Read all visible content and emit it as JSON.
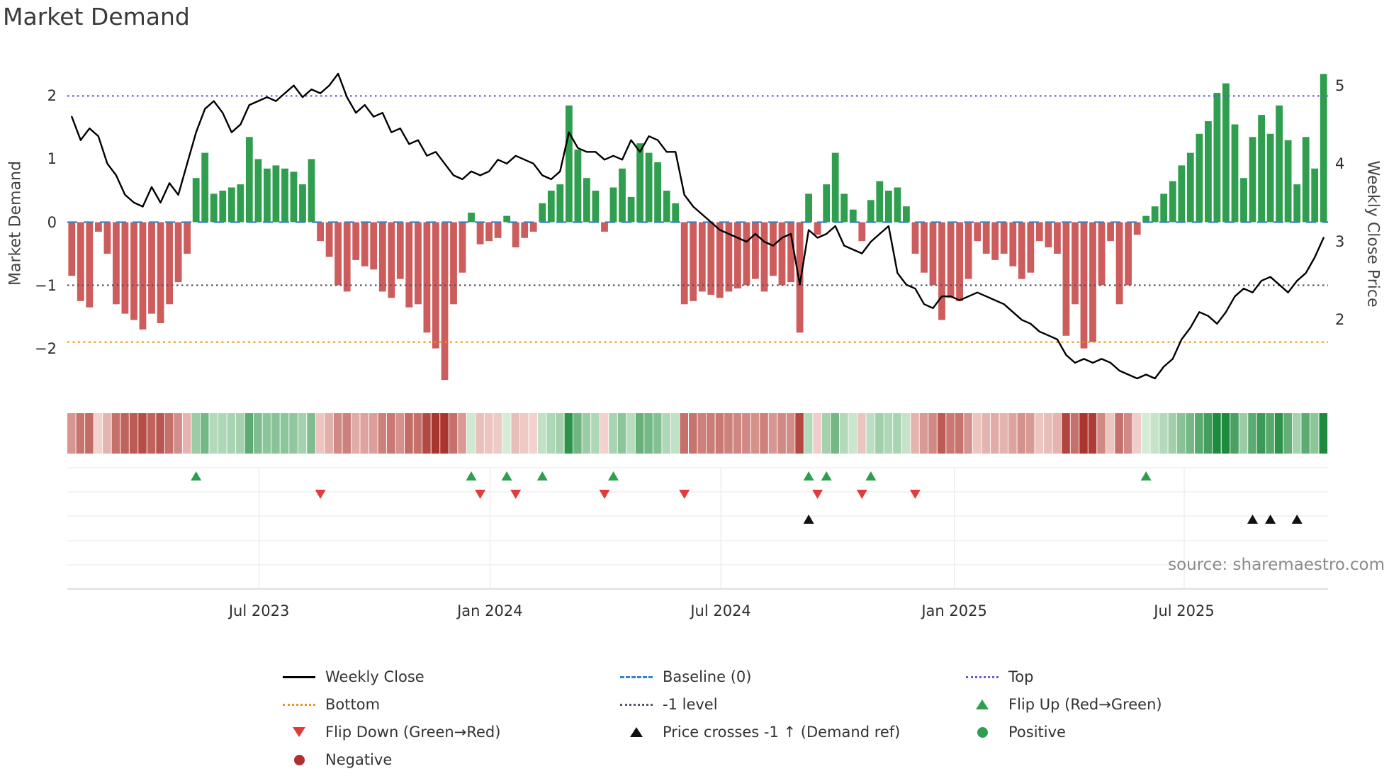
{
  "title": "Market Demand",
  "axes": {
    "left_label": "Market Demand",
    "right_label": "Weekly Close Price",
    "left_ticks": [
      "2",
      "1",
      "0",
      "−1",
      "−2"
    ],
    "right_ticks": [
      "5",
      "4",
      "3",
      "2"
    ],
    "x_ticks": [
      "Jul 2023",
      "Jan 2024",
      "Jul 2024",
      "Jan 2025",
      "Jul 2025"
    ]
  },
  "source_text": "source: sharemaestro.com",
  "colors": {
    "bar_positive": "#2f9e4f",
    "bar_negative": "#cd5c5c",
    "price_line": "#000000",
    "baseline": "#3b82c4",
    "top_line": "#6a5acd",
    "minus1_line": "#55556a",
    "bottom_line": "#f0941f",
    "flip_up": "#2f9e4f",
    "flip_down": "#e23b3b",
    "price_cross": "#111111",
    "positive_dot": "#2f9e4f",
    "negative_dot": "#b03030"
  },
  "legend": {
    "items": [
      {
        "label": "Weekly Close",
        "type": "line-solid-black"
      },
      {
        "label": "Bottom",
        "type": "line-dotted-orange"
      },
      {
        "label": "Flip Down (Green→Red)",
        "type": "triangle-down-red"
      },
      {
        "label": "Negative",
        "type": "circle-darkred"
      },
      {
        "label": "Baseline (0)",
        "type": "line-dashed-blue"
      },
      {
        "label": "-1 level",
        "type": "line-dotted-gray"
      },
      {
        "label": "Price crosses -1 ↑ (Demand ref)",
        "type": "triangle-up-black"
      },
      {
        "label": "Top",
        "type": "line-dotted-purple"
      },
      {
        "label": "Flip Up (Red→Green)",
        "type": "triangle-up-green"
      },
      {
        "label": "Positive",
        "type": "circle-green"
      }
    ]
  },
  "chart_data": {
    "type": "bar",
    "title": "Market Demand",
    "x_axis": {
      "unit": "weekly",
      "tick_labels": [
        "Jul 2023",
        "Jan 2024",
        "Jul 2024",
        "Jan 2025",
        "Jul 2025"
      ],
      "tick_weeks": [
        21.1,
        47.1,
        73.1,
        99.4,
        125.3
      ],
      "n_weeks": 142
    },
    "y_left": {
      "label": "Market Demand",
      "ticks": [
        2,
        1,
        0,
        -1,
        -2
      ],
      "lim": [
        -2.6,
        2.6
      ]
    },
    "y_right": {
      "label": "Weekly Close Price",
      "ticks": [
        5,
        4,
        3,
        2
      ],
      "lim": [
        1.15,
        5.35
      ]
    },
    "series": [
      {
        "name": "Market Demand",
        "type": "bar",
        "axis": "left",
        "values": [
          -0.85,
          -1.25,
          -1.35,
          -0.15,
          -0.5,
          -1.3,
          -1.45,
          -1.55,
          -1.7,
          -1.45,
          -1.6,
          -1.3,
          -0.95,
          -0.5,
          0.7,
          1.1,
          0.45,
          0.5,
          0.55,
          0.6,
          1.35,
          1.0,
          0.85,
          0.9,
          0.85,
          0.8,
          0.6,
          1.0,
          -0.3,
          -0.55,
          -1.0,
          -1.1,
          -0.6,
          -0.7,
          -0.75,
          -1.1,
          -1.2,
          -0.9,
          -1.35,
          -1.3,
          -1.75,
          -2.0,
          -2.5,
          -1.3,
          -0.8,
          0.15,
          -0.35,
          -0.3,
          -0.25,
          0.1,
          -0.4,
          -0.25,
          -0.15,
          0.3,
          0.5,
          0.6,
          1.85,
          1.15,
          0.7,
          0.5,
          -0.15,
          0.55,
          0.85,
          0.4,
          1.25,
          1.1,
          0.95,
          0.5,
          0.3,
          -1.3,
          -1.25,
          -1.1,
          -1.15,
          -1.2,
          -1.1,
          -1.05,
          -1.0,
          -0.9,
          -1.1,
          -0.85,
          -1.0,
          -0.95,
          -1.75,
          0.45,
          -0.2,
          0.6,
          1.1,
          0.45,
          0.2,
          -0.3,
          0.35,
          0.65,
          0.5,
          0.55,
          0.25,
          -0.5,
          -0.8,
          -1.0,
          -1.55,
          -1.2,
          -1.25,
          -0.9,
          -0.3,
          -0.5,
          -0.6,
          -0.5,
          -0.7,
          -0.9,
          -0.8,
          -0.3,
          -0.4,
          -0.5,
          -1.8,
          -1.3,
          -2.0,
          -1.9,
          -1.0,
          -0.3,
          -1.3,
          -1.0,
          -0.2,
          0.1,
          0.25,
          0.45,
          0.65,
          0.9,
          1.1,
          1.4,
          1.6,
          2.05,
          2.2,
          1.55,
          0.7,
          1.35,
          1.7,
          1.4,
          1.85,
          1.3,
          0.6,
          1.35,
          0.85,
          2.35
        ]
      },
      {
        "name": "Weekly Close",
        "type": "line",
        "axis": "right",
        "values": [
          4.6,
          4.3,
          4.45,
          4.35,
          4.0,
          3.85,
          3.6,
          3.5,
          3.45,
          3.7,
          3.5,
          3.75,
          3.6,
          4.0,
          4.4,
          4.7,
          4.8,
          4.65,
          4.4,
          4.5,
          4.75,
          4.8,
          4.85,
          4.8,
          4.9,
          5.0,
          4.85,
          4.95,
          4.9,
          5.0,
          5.15,
          4.85,
          4.65,
          4.75,
          4.6,
          4.65,
          4.4,
          4.45,
          4.25,
          4.3,
          4.1,
          4.15,
          4.0,
          3.85,
          3.8,
          3.9,
          3.85,
          3.9,
          4.05,
          4.0,
          4.1,
          4.05,
          4.0,
          3.85,
          3.8,
          3.9,
          4.4,
          4.2,
          4.15,
          4.15,
          4.05,
          4.1,
          4.05,
          4.3,
          4.15,
          4.35,
          4.3,
          4.15,
          4.15,
          3.6,
          3.45,
          3.35,
          3.25,
          3.15,
          3.1,
          3.05,
          3.0,
          3.1,
          3.0,
          2.95,
          3.05,
          3.1,
          2.45,
          3.15,
          3.05,
          3.1,
          3.2,
          2.95,
          2.9,
          2.85,
          3.0,
          3.1,
          3.2,
          2.6,
          2.45,
          2.4,
          2.2,
          2.15,
          2.3,
          2.3,
          2.25,
          2.3,
          2.35,
          2.3,
          2.25,
          2.2,
          2.1,
          2.0,
          1.95,
          1.85,
          1.8,
          1.75,
          1.55,
          1.45,
          1.5,
          1.45,
          1.5,
          1.45,
          1.35,
          1.3,
          1.25,
          1.3,
          1.25,
          1.4,
          1.5,
          1.75,
          1.9,
          2.1,
          2.05,
          1.95,
          2.1,
          2.3,
          2.4,
          2.35,
          2.5,
          2.55,
          2.45,
          2.35,
          2.5,
          2.6,
          2.8,
          3.05
        ]
      }
    ],
    "ref_lines": [
      {
        "name": "Top",
        "axis": "left",
        "value": 2
      },
      {
        "name": "Baseline (0)",
        "axis": "left",
        "value": 0
      },
      {
        "name": "-1 level",
        "axis": "left",
        "value": -1
      },
      {
        "name": "Bottom",
        "axis": "left",
        "value": -1.9
      }
    ],
    "heatmap": {
      "source": "demand bar values",
      "negative_color": "red shades",
      "positive_color": "green shades"
    },
    "markers": {
      "flip_up_weeks": [
        14,
        45,
        49,
        53,
        61,
        83,
        85,
        90,
        121
      ],
      "flip_down_weeks": [
        28,
        46,
        50,
        60,
        69,
        84,
        89,
        95
      ],
      "price_cross_weeks": [
        83,
        133,
        135,
        138
      ]
    },
    "legend_position": "bottom",
    "grid": "lower marker panel only"
  }
}
